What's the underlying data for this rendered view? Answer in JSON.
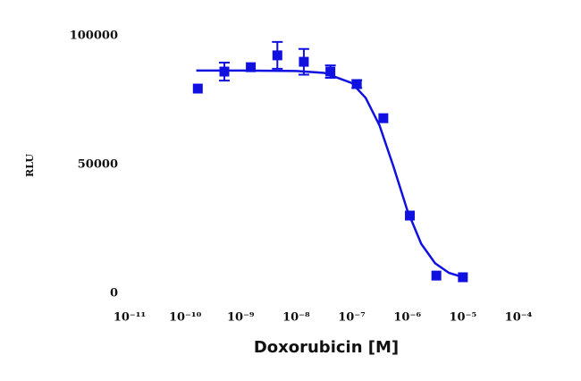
{
  "chart_data": {
    "type": "scatter",
    "x_label": "Doxorubicin [M]",
    "y_label": "RLU",
    "log_x": true,
    "xlim": [
      1e-11,
      0.0001
    ],
    "xticks": [
      {
        "value": 1e-11,
        "label": "10⁻¹¹"
      },
      {
        "value": 1e-10,
        "label": "10⁻¹⁰"
      },
      {
        "value": 1e-09,
        "label": "10⁻⁹"
      },
      {
        "value": 1e-08,
        "label": "10⁻⁸"
      },
      {
        "value": 1e-07,
        "label": "10⁻⁷"
      },
      {
        "value": 1e-06,
        "label": "10⁻⁶"
      },
      {
        "value": 1e-05,
        "label": "10⁻⁵"
      },
      {
        "value": 0.0001,
        "label": "10⁻⁴"
      }
    ],
    "ylim": [
      0,
      100000
    ],
    "yticks": [
      0,
      50000,
      100000
    ],
    "color": "#1010e0",
    "points": {
      "x": [
        1.69e-10,
        5.08e-10,
        1.52e-09,
        4.57e-09,
        1.37e-08,
        4.12e-08,
        1.23e-07,
        3.7e-07,
        1.11e-06,
        3.33e-06,
        1e-05
      ],
      "values": [
        79500,
        86100,
        87800,
        92400,
        89900,
        86100,
        81250,
        68000,
        30200,
        6900,
        6250
      ],
      "errors": [
        0,
        3500,
        0,
        5200,
        5000,
        2400,
        1500,
        0,
        0,
        0,
        0
      ]
    },
    "fit": {
      "x": [
        1.585e-10,
        1e-09,
        1e-08,
        3.162e-08,
        1e-07,
        1.778e-07,
        3.162e-07,
        5.623e-07,
        1e-06,
        1.778e-06,
        3.162e-06,
        5.623e-06,
        1e-05
      ],
      "values": [
        86500,
        86500,
        86337,
        85597,
        81663,
        75895,
        65157,
        49270,
        32212,
        19223,
        11670,
        7953,
        6271
      ]
    }
  }
}
